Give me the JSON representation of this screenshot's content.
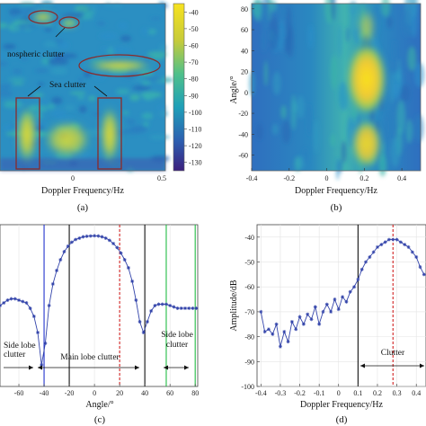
{
  "chart_data": [
    {
      "id": "a",
      "type": "heatmap",
      "caption": "(a)",
      "xlabel": "Doppler Frequency/Hz",
      "ylabel": "",
      "x_ticks": [
        "0",
        "0.5"
      ],
      "colorbar": {
        "ticks": [
          "-40",
          "-50",
          "-60",
          "-70",
          "-80",
          "-90",
          "-100",
          "-110",
          "-120",
          "-130"
        ],
        "range": [
          -135,
          -35
        ]
      },
      "annotations": [
        "nospheric clutter",
        "Sea clutter"
      ]
    },
    {
      "id": "b",
      "type": "heatmap",
      "caption": "(b)",
      "xlabel": "Doppler Frequency/Hz",
      "ylabel": "Angle/°",
      "x_ticks": [
        "-0.4",
        "-0.2",
        "0",
        "0.2",
        "0.4"
      ],
      "y_ticks": [
        "80",
        "60",
        "40",
        "20",
        "0",
        "-20",
        "-40",
        "-60"
      ]
    },
    {
      "id": "c",
      "type": "line",
      "caption": "(c)",
      "xlabel": "Angle/°",
      "x_ticks": [
        "-60",
        "-40",
        "-20",
        "0",
        "20",
        "40",
        "60",
        "80"
      ],
      "xlim": [
        -75,
        82
      ],
      "ylim": [
        -60,
        0
      ],
      "series": [
        {
          "x": [
            -75,
            -72,
            -69,
            -66,
            -63,
            -60,
            -57,
            -54,
            -51,
            -48,
            -45,
            -42,
            -39,
            -36,
            -33,
            -30,
            -27,
            -24,
            -21,
            -18,
            -15,
            -12,
            -9,
            -6,
            -3,
            0,
            3,
            6,
            9,
            12,
            15,
            18,
            21,
            24,
            27,
            30,
            33,
            36,
            39,
            42,
            45,
            48,
            51,
            54,
            57,
            60,
            63,
            66,
            69,
            72,
            75,
            78,
            81
          ],
          "y": [
            -30,
            -29,
            -28,
            -27.5,
            -27.5,
            -28,
            -28.5,
            -29,
            -31,
            -34,
            -40,
            -52,
            -44,
            -30,
            -22,
            -17,
            -13,
            -10,
            -8,
            -6.5,
            -5.5,
            -5,
            -4.5,
            -4.3,
            -4.2,
            -4.1,
            -4.2,
            -4.5,
            -5,
            -5.8,
            -7,
            -8.5,
            -10.5,
            -13,
            -16,
            -21,
            -28,
            -36,
            -40,
            -36,
            -32,
            -30,
            -29.5,
            -29.5,
            -29.5,
            -30,
            -30.5,
            -31,
            -31,
            -31,
            -31,
            -31,
            -31
          ]
        }
      ],
      "markers": [
        {
          "x": -40,
          "color": "#2233cc",
          "style": "solid"
        },
        {
          "x": -20,
          "color": "#111111",
          "style": "solid"
        },
        {
          "x": 20,
          "color": "#d22222",
          "style": "dashed"
        },
        {
          "x": 40,
          "color": "#111111",
          "style": "solid"
        },
        {
          "x": 57,
          "color": "#22bb44",
          "style": "solid"
        },
        {
          "x": 80,
          "color": "#22bb44",
          "style": "solid"
        }
      ],
      "annotations": {
        "side_left": [
          "Side lobe",
          "clutter"
        ],
        "main": "Main lobe clutter",
        "side_right": [
          "Side lobe",
          "clutter"
        ]
      }
    },
    {
      "id": "d",
      "type": "line",
      "caption": "(d)",
      "xlabel": "Doppler Frequency/Hz",
      "ylabel": "Amplitude/dB",
      "x_ticks": [
        "-0.4",
        "-0.3",
        "-0.2",
        "-0.1",
        "0",
        "0.1",
        "0.2",
        "0.3",
        "0.4"
      ],
      "y_ticks": [
        "-40",
        "-50",
        "-60",
        "-70",
        "-80",
        "-90",
        "-100"
      ],
      "xlim": [
        -0.42,
        0.45
      ],
      "ylim": [
        -100,
        -35
      ],
      "series": [
        {
          "x": [
            -0.4,
            -0.38,
            -0.36,
            -0.34,
            -0.32,
            -0.3,
            -0.28,
            -0.26,
            -0.24,
            -0.22,
            -0.2,
            -0.18,
            -0.16,
            -0.14,
            -0.12,
            -0.1,
            -0.08,
            -0.06,
            -0.04,
            -0.02,
            0.0,
            0.02,
            0.04,
            0.06,
            0.08,
            0.1,
            0.12,
            0.14,
            0.16,
            0.18,
            0.2,
            0.22,
            0.24,
            0.26,
            0.28,
            0.3,
            0.32,
            0.34,
            0.36,
            0.38,
            0.4,
            0.42,
            0.44
          ],
          "y": [
            -70,
            -78,
            -77,
            -79,
            -75,
            -84,
            -78,
            -82,
            -74,
            -77,
            -72,
            -75,
            -71,
            -73,
            -68,
            -75,
            -70,
            -67,
            -70,
            -65,
            -69,
            -64,
            -66,
            -62,
            -60,
            -57,
            -53,
            -50,
            -48,
            -46,
            -44,
            -43,
            -42,
            -41,
            -41,
            -41,
            -42,
            -43,
            -44,
            -46,
            -48,
            -52,
            -55
          ]
        }
      ],
      "markers": [
        {
          "x": 0.1,
          "color": "#111111",
          "style": "solid"
        },
        {
          "x": 0.28,
          "color": "#d22222",
          "style": "dashed"
        }
      ],
      "annotations": [
        "Clutter"
      ]
    }
  ]
}
